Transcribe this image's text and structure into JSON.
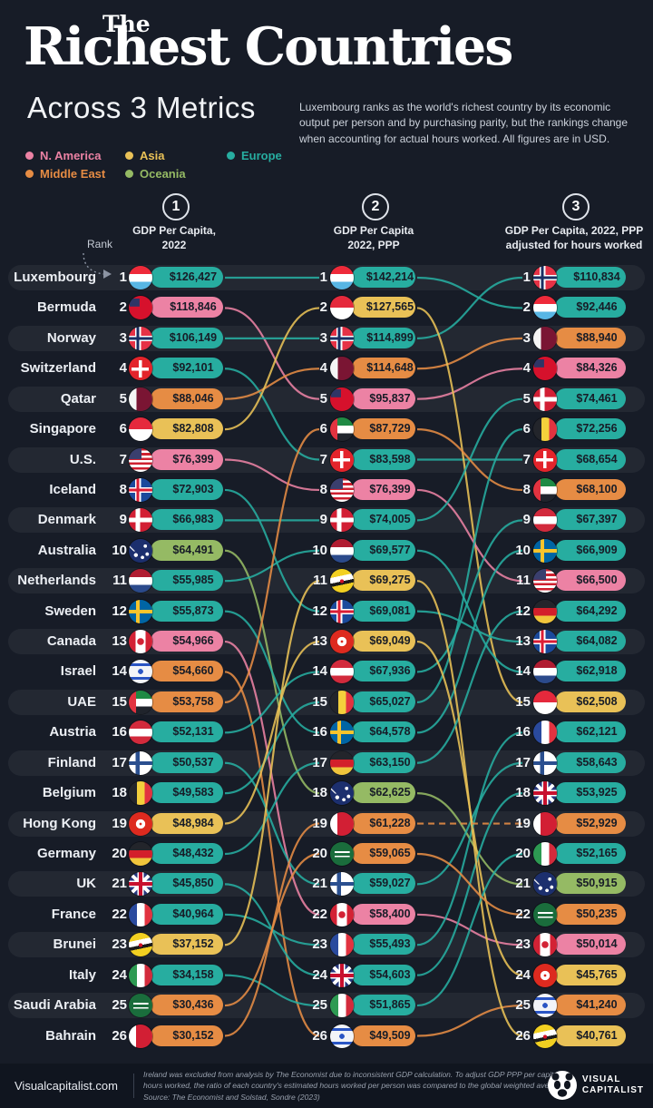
{
  "header": {
    "title_prefix": "The",
    "title": "Richest Countries",
    "subtitle": "Across 3 Metrics",
    "description": "Luxembourg ranks as the world's richest country by its economic output per person and by purchasing parity, but the rankings change when accounting for actual hours worked. All figures are in USD."
  },
  "legend": {
    "items": [
      {
        "label": "N. America",
        "region": "N. America"
      },
      {
        "label": "Asia",
        "region": "Asia"
      },
      {
        "label": "Europe",
        "region": "Europe"
      },
      {
        "label": "Middle East",
        "region": "Middle East"
      },
      {
        "label": "Oceania",
        "region": "Oceania"
      }
    ]
  },
  "region_colors": {
    "N. America": "#ec82a4",
    "Asia": "#e9c157",
    "Europe": "#27ada0",
    "Middle East": "#e68c44",
    "Oceania": "#95ba64"
  },
  "rank_label": "Rank",
  "columns": [
    {
      "number": "1",
      "label": "GDP Per Capita,\n2022"
    },
    {
      "number": "2",
      "label": "GDP Per Capita\n2022, PPP"
    },
    {
      "number": "3",
      "label": "GDP Per Capita, 2022, PPP\nadjusted for hours worked"
    }
  ],
  "chart_data": {
    "type": "bump",
    "note": "ranks = [GDP per capita 2022, GDP per capita 2022 PPP, GDP per capita 2022 PPP adjusted for hours worked]; values are the matching dollar figures",
    "countries": [
      {
        "name": "Luxembourg",
        "region": "Europe",
        "flag": "lu",
        "ranks": [
          1,
          1,
          2
        ],
        "values": [
          "$126,427",
          "$142,214",
          "$92,446"
        ]
      },
      {
        "name": "Bermuda",
        "region": "N. America",
        "flag": "bm",
        "ranks": [
          2,
          5,
          4
        ],
        "values": [
          "$118,846",
          "$95,837",
          "$84,326"
        ]
      },
      {
        "name": "Norway",
        "region": "Europe",
        "flag": "no",
        "ranks": [
          3,
          3,
          1
        ],
        "values": [
          "$106,149",
          "$114,899",
          "$110,834"
        ]
      },
      {
        "name": "Switzerland",
        "region": "Europe",
        "flag": "ch",
        "ranks": [
          4,
          7,
          7
        ],
        "values": [
          "$92,101",
          "$83,598",
          "$68,654"
        ]
      },
      {
        "name": "Qatar",
        "region": "Middle East",
        "flag": "qa",
        "ranks": [
          5,
          4,
          3
        ],
        "values": [
          "$88,046",
          "$114,648",
          "$88,940"
        ]
      },
      {
        "name": "Singapore",
        "region": "Asia",
        "flag": "sg",
        "ranks": [
          6,
          2,
          15
        ],
        "values": [
          "$82,808",
          "$127,565",
          "$62,508"
        ]
      },
      {
        "name": "U.S.",
        "region": "N. America",
        "flag": "us",
        "ranks": [
          7,
          8,
          11
        ],
        "values": [
          "$76,399",
          "$76,399",
          "$66,500"
        ]
      },
      {
        "name": "Iceland",
        "region": "Europe",
        "flag": "is",
        "ranks": [
          8,
          12,
          13
        ],
        "values": [
          "$72,903",
          "$69,081",
          "$64,082"
        ]
      },
      {
        "name": "Denmark",
        "region": "Europe",
        "flag": "dk",
        "ranks": [
          9,
          9,
          5
        ],
        "values": [
          "$66,983",
          "$74,005",
          "$74,461"
        ]
      },
      {
        "name": "Australia",
        "region": "Oceania",
        "flag": "au",
        "ranks": [
          10,
          18,
          21
        ],
        "values": [
          "$64,491",
          "$62,625",
          "$50,915"
        ]
      },
      {
        "name": "Netherlands",
        "region": "Europe",
        "flag": "nl",
        "ranks": [
          11,
          10,
          14
        ],
        "values": [
          "$55,985",
          "$69,577",
          "$62,918"
        ]
      },
      {
        "name": "Sweden",
        "region": "Europe",
        "flag": "se",
        "ranks": [
          12,
          16,
          10
        ],
        "values": [
          "$55,873",
          "$64,578",
          "$66,909"
        ]
      },
      {
        "name": "Canada",
        "region": "N. America",
        "flag": "ca",
        "ranks": [
          13,
          22,
          23
        ],
        "values": [
          "$54,966",
          "$58,400",
          "$50,014"
        ]
      },
      {
        "name": "Israel",
        "region": "Middle East",
        "flag": "il",
        "ranks": [
          14,
          26,
          25
        ],
        "values": [
          "$54,660",
          "$49,509",
          "$41,240"
        ]
      },
      {
        "name": "UAE",
        "region": "Middle East",
        "flag": "ae",
        "ranks": [
          15,
          6,
          8
        ],
        "values": [
          "$53,758",
          "$87,729",
          "$68,100"
        ]
      },
      {
        "name": "Austria",
        "region": "Europe",
        "flag": "at",
        "ranks": [
          16,
          14,
          9
        ],
        "values": [
          "$52,131",
          "$67,936",
          "$67,397"
        ]
      },
      {
        "name": "Finland",
        "region": "Europe",
        "flag": "fi",
        "ranks": [
          17,
          21,
          17
        ],
        "values": [
          "$50,537",
          "$59,027",
          "$58,643"
        ]
      },
      {
        "name": "Belgium",
        "region": "Europe",
        "flag": "be",
        "ranks": [
          18,
          15,
          6
        ],
        "values": [
          "$49,583",
          "$65,027",
          "$72,256"
        ]
      },
      {
        "name": "Hong Kong",
        "region": "Asia",
        "flag": "hk",
        "ranks": [
          19,
          13,
          24
        ],
        "values": [
          "$48,984",
          "$69,049",
          "$45,765"
        ]
      },
      {
        "name": "Germany",
        "region": "Europe",
        "flag": "de",
        "ranks": [
          20,
          17,
          12
        ],
        "values": [
          "$48,432",
          "$63,150",
          "$64,292"
        ]
      },
      {
        "name": "UK",
        "region": "Europe",
        "flag": "gb",
        "ranks": [
          21,
          24,
          18
        ],
        "values": [
          "$45,850",
          "$54,603",
          "$53,925"
        ]
      },
      {
        "name": "France",
        "region": "Europe",
        "flag": "fr",
        "ranks": [
          22,
          23,
          16
        ],
        "values": [
          "$40,964",
          "$55,493",
          "$62,121"
        ]
      },
      {
        "name": "Brunei",
        "region": "Asia",
        "flag": "bn",
        "ranks": [
          23,
          11,
          26
        ],
        "values": [
          "$37,152",
          "$69,275",
          "$40,761"
        ]
      },
      {
        "name": "Italy",
        "region": "Europe",
        "flag": "it",
        "ranks": [
          24,
          25,
          20
        ],
        "values": [
          "$34,158",
          "$51,865",
          "$52,165"
        ]
      },
      {
        "name": "Saudi Arabia",
        "region": "Middle East",
        "flag": "sa",
        "ranks": [
          25,
          20,
          22
        ],
        "values": [
          "$30,436",
          "$59,065",
          "$50,235"
        ]
      },
      {
        "name": "Bahrain",
        "region": "Middle East",
        "flag": "bh",
        "ranks": [
          26,
          19,
          19
        ],
        "values": [
          "$30,152",
          "$61,228",
          "$52,929"
        ]
      }
    ]
  },
  "footer": {
    "site": "Visualcapitalist.com",
    "note": "Ireland was excluded from analysis by The Economist due to inconsistent GDP calculation. To adjust GDP PPP per capita for hours worked, the ratio of each country's estimated hours worked per person was compared to the global weighted average.",
    "source": "Source: The Economist and Solstad, Sondre (2023)",
    "logo_text_top": "VISUAL",
    "logo_text_bottom": "CAPITALIST"
  }
}
